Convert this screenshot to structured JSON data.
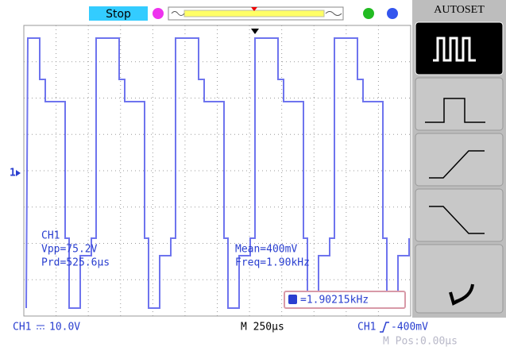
{
  "header": {
    "status": "Stop",
    "menu_title": "AUTOSET"
  },
  "channel_marker": "1",
  "measurements": {
    "channel": "CH1",
    "vpp": "Vpp=75.2V",
    "period": "Prd=525.6µs",
    "mean": "Mean=400mV",
    "frequency": "Freq=1.90kHz"
  },
  "counter": "=1.90215kHz",
  "footer": {
    "scale_channel": "CH1",
    "scale": "10.0V",
    "timebase": "M 250µs",
    "trigger_channel": "CH1",
    "trigger_level": "-400mV",
    "position": "M Pos:0.00µs"
  }
}
